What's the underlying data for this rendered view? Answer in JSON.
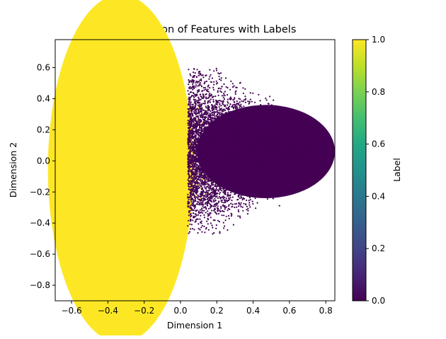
{
  "chart_data": {
    "type": "scatter",
    "title": "2D Visualization of Features with Labels",
    "xlabel": "Dimension 1",
    "ylabel": "Dimension 2",
    "xlim": [
      -0.69,
      0.85
    ],
    "ylim": [
      -0.9,
      0.78
    ],
    "xticks": [
      -0.6,
      -0.4,
      -0.2,
      0.0,
      0.2,
      0.4,
      0.6,
      0.8
    ],
    "yticks": [
      -0.8,
      -0.6,
      -0.4,
      -0.2,
      0.0,
      0.2,
      0.4,
      0.6
    ],
    "grid": false,
    "colorbar": {
      "label": "Label",
      "range": [
        0.0,
        1.0
      ],
      "ticks": [
        0.0,
        0.2,
        0.4,
        0.6,
        0.8,
        1.0
      ],
      "colormap": "viridis"
    },
    "series": [
      {
        "label_value": 1,
        "color": "#fde725",
        "approx_extent": {
          "x": [
            -0.63,
            0.2
          ],
          "y": [
            -0.82,
            0.72
          ]
        },
        "dense_center": [
          -0.3,
          0.05
        ]
      },
      {
        "label_value": 0,
        "color": "#440154",
        "approx_extent": {
          "x": [
            0.0,
            0.76
          ],
          "y": [
            -0.47,
            0.6
          ]
        },
        "dense_center": [
          0.5,
          0.06
        ]
      }
    ]
  }
}
